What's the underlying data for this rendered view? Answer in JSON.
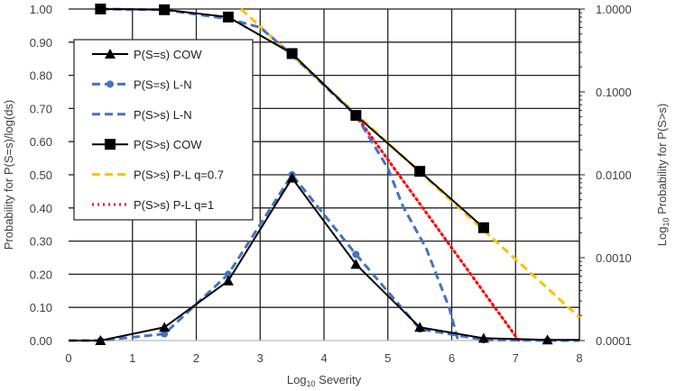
{
  "chart_data": {
    "type": "line",
    "xlabel": "Log10 Severity",
    "xlabel_main": "Log",
    "xlabel_sub": "10",
    "xlabel_rest": " Severity",
    "ylabel": "Probability for P(S=s)/log(ds)",
    "y2label": "Log10 Probability for P(S>s)",
    "y2label_main": "Log",
    "y2label_sub": "10",
    "y2label_rest": " Probability for P(S>s)",
    "xlim": [
      0,
      8
    ],
    "ylim": [
      0,
      1
    ],
    "y2lim": [
      0.0001,
      1
    ],
    "y2scale": "log",
    "grid": true,
    "legend_position": "left",
    "x_ticks": [
      "0",
      "1",
      "2",
      "3",
      "4",
      "5",
      "6",
      "7",
      "8"
    ],
    "y_ticks": [
      "0.00",
      "0.10",
      "0.20",
      "0.30",
      "0.40",
      "0.50",
      "0.60",
      "0.70",
      "0.80",
      "0.90",
      "1.00"
    ],
    "y2_ticks": [
      "0.0001",
      "0.0010",
      "0.0100",
      "0.1000",
      "1.0000"
    ],
    "series": [
      {
        "name": "P(S=s) COW",
        "axis": "left",
        "color": "#000000",
        "style": "solid",
        "marker": "triangle",
        "x": [
          0,
          0.5,
          1.5,
          2.5,
          3.5,
          4.5,
          5.5,
          6.5,
          7.5,
          8
        ],
        "y": [
          0,
          0,
          0.04,
          0.18,
          0.49,
          0.23,
          0.04,
          0.007,
          0.002,
          0.002
        ],
        "marked": [
          false,
          true,
          true,
          true,
          true,
          true,
          true,
          true,
          true,
          false
        ]
      },
      {
        "name": "P(S=s) L-N",
        "axis": "left",
        "color": "#4472C4",
        "style": "dashed",
        "marker": "circle",
        "x": [
          0,
          0.5,
          1.5,
          2.5,
          3.5,
          4.5,
          5.5,
          6.5,
          7.5,
          8
        ],
        "y": [
          0,
          0,
          0.02,
          0.2,
          0.5,
          0.26,
          0.035,
          0.002,
          0,
          0
        ],
        "marked": [
          false,
          true,
          true,
          true,
          true,
          true,
          true,
          true,
          true,
          false
        ]
      },
      {
        "name": "P(S>s) L-N",
        "axis": "right",
        "color": "#4472C4",
        "style": "dashed",
        "marker": "none",
        "x": [
          0.5,
          1.5,
          2.5,
          3,
          3.5,
          4,
          4.5,
          5,
          5.24,
          5.6,
          5.96,
          6.1
        ],
        "y": [
          1,
          0.98,
          0.76,
          0.6,
          0.28,
          0.12,
          0.052,
          0.012,
          0.0041,
          0.0013,
          0.00025,
          0.0001
        ]
      },
      {
        "name": "P(S>s) COW",
        "axis": "right",
        "color": "#000000",
        "style": "solid",
        "marker": "square",
        "x": [
          0.5,
          1.5,
          2.5,
          3.5,
          4.5,
          5.5,
          6.5
        ],
        "y": [
          1,
          0.98,
          0.8,
          0.29,
          0.052,
          0.011,
          0.0023
        ]
      },
      {
        "name": "P(S>s) P-L q=0.7",
        "axis": "right",
        "color": "#FFC000",
        "style": "dashed",
        "marker": "none",
        "x": [
          2.7,
          8
        ],
        "y": [
          1,
          0.00019
        ]
      },
      {
        "name": "P(S>s) P-L q=1",
        "axis": "right",
        "color": "#FF0000",
        "style": "dotted",
        "marker": "none",
        "x": [
          4.5,
          7.05
        ],
        "y": [
          0.052,
          0.0001
        ]
      }
    ]
  }
}
